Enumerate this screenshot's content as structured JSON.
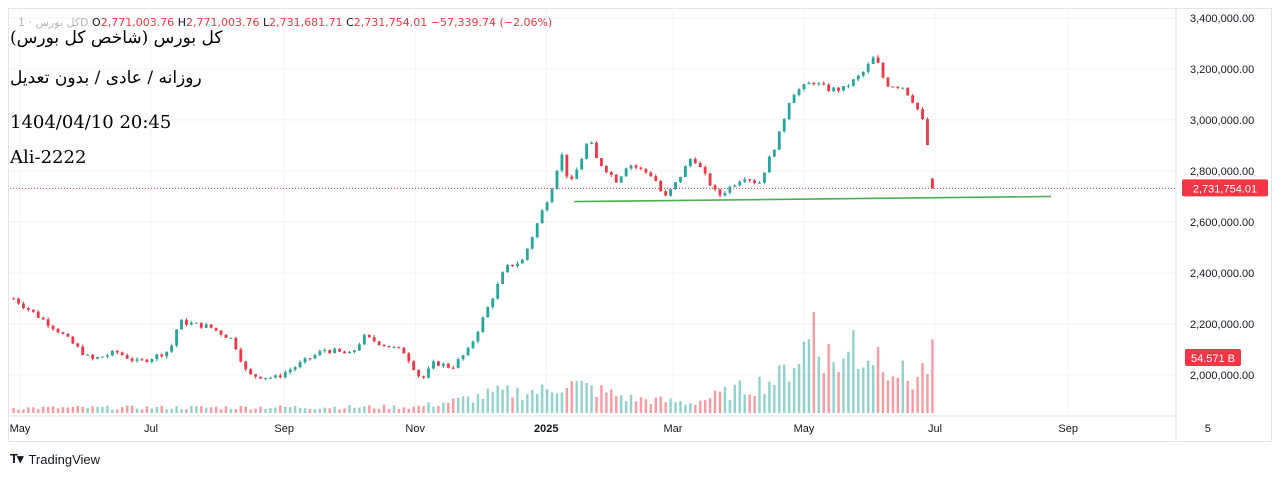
{
  "legend": {
    "symbol": "کل بورس · 1D",
    "open_key": "O",
    "open_value": "2,771,003.76",
    "high_key": "H",
    "high_value": "2,771,003.76",
    "low_key": "L",
    "low_value": "2,731,681.71",
    "close_key": "C",
    "close_value": "2,731,754.01",
    "change": "−57,339.74 (−2.06%)"
  },
  "info": {
    "title": "کل بورس (شاخص کل بورس)",
    "subtitle": "روزانه / عادی / بدون تعدیل",
    "datetime": "1404/04/10 20:45",
    "author": "Ali-2222"
  },
  "footer": {
    "brand": "TradingView"
  },
  "colors": {
    "up": "#26a69a",
    "down": "#f23645",
    "trendline": "#4caf50",
    "grid": "#f0f3fa"
  },
  "chart_data": {
    "type": "candlestick",
    "y_ticks": [
      "3,400,000.00",
      "3,200,000.00",
      "3,000,000.00",
      "2,800,000.00",
      "2,600,000.00",
      "2,400,000.00",
      "2,200,000.00",
      "2,000,000.00"
    ],
    "y_tick_values": [
      3400000,
      3200000,
      3000000,
      2800000,
      2600000,
      2400000,
      2200000,
      2000000
    ],
    "ylim": [
      1840000,
      3415000
    ],
    "x_ticks": [
      "May",
      "Jul",
      "Sep",
      "Nov",
      "2025",
      "Mar",
      "May",
      "Jul",
      "Sep",
      "5"
    ],
    "x_ticks_bold": [
      false,
      false,
      false,
      false,
      true,
      false,
      false,
      false,
      false,
      false
    ],
    "x_tick_dates": [
      "2024-05-01",
      "2024-07-01",
      "2024-09-01",
      "2024-11-01",
      "2025-01-01",
      "2025-03-01",
      "2025-05-01",
      "2025-07-01",
      "2025-09-01",
      "2025-11-05"
    ],
    "price_line": {
      "value": 2731754.01,
      "label": "2,731,754.01"
    },
    "volume_label": "54.571 B",
    "trendline": {
      "start": [
        "2025-01-14",
        2680000
      ],
      "end": [
        "2025-08-24",
        2700000
      ]
    },
    "anchors": [
      [
        "2024-04-28",
        2300000
      ],
      [
        "2024-05-18",
        2180000
      ],
      [
        "2024-06-03",
        2060000
      ],
      [
        "2024-06-15",
        2090000
      ],
      [
        "2024-06-25",
        2050000
      ],
      [
        "2024-07-05",
        2080000
      ],
      [
        "2024-07-10",
        2100000
      ],
      [
        "2024-07-14",
        2210000
      ],
      [
        "2024-07-28",
        2190000
      ],
      [
        "2024-08-08",
        2140000
      ],
      [
        "2024-08-15",
        2000000
      ],
      [
        "2024-08-28",
        1990000
      ],
      [
        "2024-09-20",
        2100000
      ],
      [
        "2024-10-02",
        2080000
      ],
      [
        "2024-10-08",
        2150000
      ],
      [
        "2024-10-27",
        2090000
      ],
      [
        "2024-11-04",
        1980000
      ],
      [
        "2024-11-10",
        2050000
      ],
      [
        "2024-11-18",
        2030000
      ],
      [
        "2024-11-26",
        2100000
      ],
      [
        "2024-12-03",
        2230000
      ],
      [
        "2024-12-13",
        2420000
      ],
      [
        "2024-12-21",
        2450000
      ],
      [
        "2024-12-30",
        2640000
      ],
      [
        "2025-01-03",
        2720000
      ],
      [
        "2025-01-08",
        2870000
      ],
      [
        "2025-01-12",
        2740000
      ],
      [
        "2025-01-17",
        2840000
      ],
      [
        "2025-01-21",
        2930000
      ],
      [
        "2025-01-24",
        2850000
      ],
      [
        "2025-02-03",
        2760000
      ],
      [
        "2025-02-08",
        2830000
      ],
      [
        "2025-02-20",
        2780000
      ],
      [
        "2025-02-25",
        2690000
      ],
      [
        "2025-03-03",
        2760000
      ],
      [
        "2025-03-10",
        2860000
      ],
      [
        "2025-03-16",
        2780000
      ],
      [
        "2025-03-22",
        2700000
      ],
      [
        "2025-03-28",
        2740000
      ],
      [
        "2025-04-03",
        2780000
      ],
      [
        "2025-04-10",
        2750000
      ],
      [
        "2025-04-19",
        2930000
      ],
      [
        "2025-04-25",
        3100000
      ],
      [
        "2025-05-05",
        3150000
      ],
      [
        "2025-05-12",
        3120000
      ],
      [
        "2025-05-19",
        3120000
      ],
      [
        "2025-05-28",
        3180000
      ],
      [
        "2025-06-03",
        3250000
      ],
      [
        "2025-06-08",
        3140000
      ],
      [
        "2025-06-16",
        3130000
      ],
      [
        "2025-06-22",
        3060000
      ],
      [
        "2025-06-26",
        2980000
      ],
      [
        "2025-06-30",
        2771000
      ],
      [
        "2025-07-01",
        2731754
      ]
    ],
    "volume_anchors": [
      [
        "2024-04-28",
        0.05
      ],
      [
        "2024-11-01",
        0.06
      ],
      [
        "2024-11-20",
        0.12
      ],
      [
        "2024-12-10",
        0.2
      ],
      [
        "2025-01-01",
        0.22
      ],
      [
        "2025-01-10",
        0.3
      ],
      [
        "2025-02-10",
        0.14
      ],
      [
        "2025-03-10",
        0.1
      ],
      [
        "2025-04-20",
        0.35
      ],
      [
        "2025-05-05",
        0.75
      ],
      [
        "2025-05-15",
        0.5
      ],
      [
        "2025-06-05",
        0.6
      ],
      [
        "2025-06-20",
        0.3
      ],
      [
        "2025-07-01",
        0.55
      ]
    ],
    "volume_spikes": [
      [
        "2025-05-05",
        1.0
      ],
      [
        "2025-05-25",
        0.82
      ],
      [
        "2025-07-01",
        0.58
      ]
    ]
  }
}
